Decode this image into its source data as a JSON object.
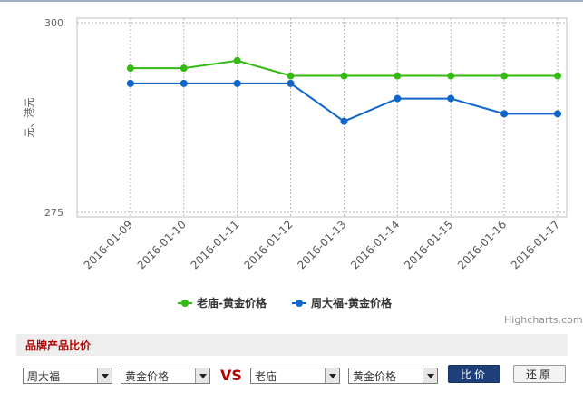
{
  "chart_data": {
    "type": "line",
    "x": [
      "2016-01-09",
      "2016-01-10",
      "2016-01-11",
      "2016-01-12",
      "2016-01-13",
      "2016-01-14",
      "2016-01-15",
      "2016-01-16",
      "2016-01-17"
    ],
    "ylabel": "元、港元",
    "ylim": [
      275,
      300
    ],
    "yticks": [
      "300",
      "275"
    ],
    "series": [
      {
        "name": "老庙-黄金价格",
        "color": "#33bb11",
        "values": [
          294,
          294,
          295,
          293,
          293,
          293,
          293,
          293,
          293
        ]
      },
      {
        "name": "周大福-黄金价格",
        "color": "#1166cc",
        "values": [
          292,
          292,
          292,
          292,
          287,
          290,
          290,
          288,
          288
        ]
      }
    ],
    "legend_position": "bottom",
    "grid": true
  },
  "credit": "Highcharts.com",
  "compare": {
    "title": "品牌产品比价",
    "brand1": "周大福",
    "product1": "黄金价格",
    "vs": "VS",
    "brand2": "老庙",
    "product2": "黄金价格",
    "compare_label": "比价",
    "reset_label": "还原"
  }
}
